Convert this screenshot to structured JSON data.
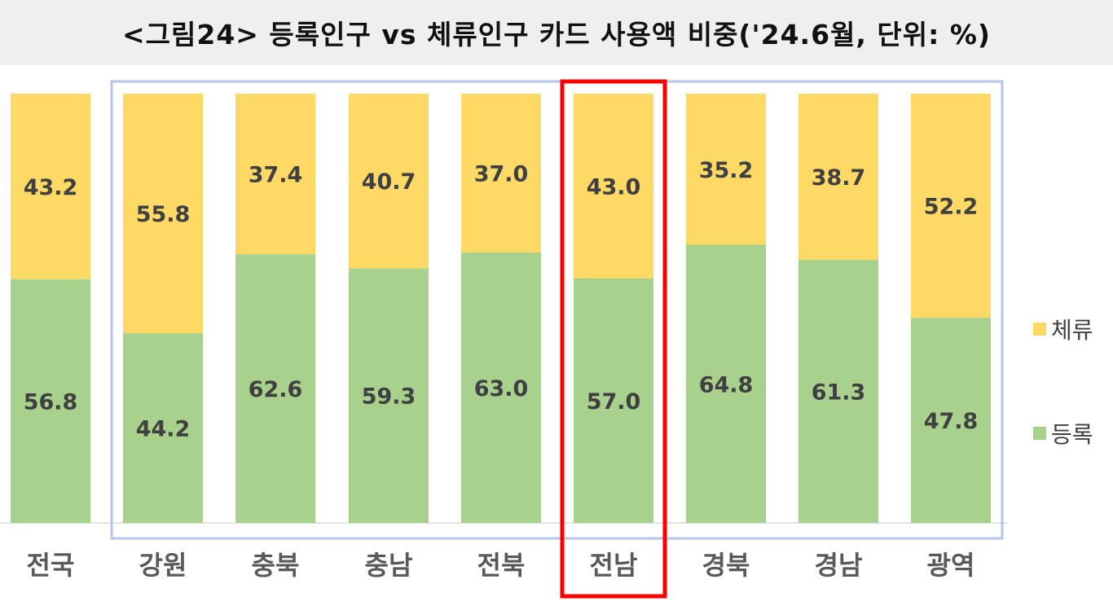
{
  "title": "<그림24>  등록인구  vs  체류인구  카드  사용액  비중('24.6월,  단위:  %)",
  "chart_data": {
    "type": "bar",
    "stacked": true,
    "percent_stacked": true,
    "categories": [
      "전국",
      "강원",
      "충북",
      "충남",
      "전북",
      "전남",
      "경북",
      "경남",
      "광역"
    ],
    "series": [
      {
        "name": "등록",
        "values": [
          56.8,
          44.2,
          62.6,
          59.3,
          63.0,
          57.0,
          64.8,
          61.3,
          47.8
        ]
      },
      {
        "name": "체류",
        "values": [
          43.2,
          55.8,
          37.4,
          40.7,
          37.0,
          43.0,
          35.2,
          38.7,
          52.2
        ]
      }
    ],
    "labels": {
      "등록": [
        "56.8",
        "44.2",
        "62.6",
        "59.3",
        "63.0",
        "57.0",
        "64.8",
        "61.3",
        "47.8"
      ],
      "체류": [
        "43.2",
        "55.8",
        "37.4",
        "40.7",
        "37.0",
        "43.0",
        "35.2",
        "38.7",
        "52.2"
      ]
    },
    "ylim": [
      0,
      100
    ],
    "legend_position": "right",
    "colors": {
      "등록": "#a9d18e",
      "체류": "#ffd966",
      "group_box": "#b4c7e7",
      "highlight_box": "#ff0000"
    },
    "group_box_categories": [
      "강원",
      "충북",
      "충남",
      "전북",
      "전남",
      "경북",
      "경남",
      "광역"
    ],
    "highlight_category": "전남"
  }
}
